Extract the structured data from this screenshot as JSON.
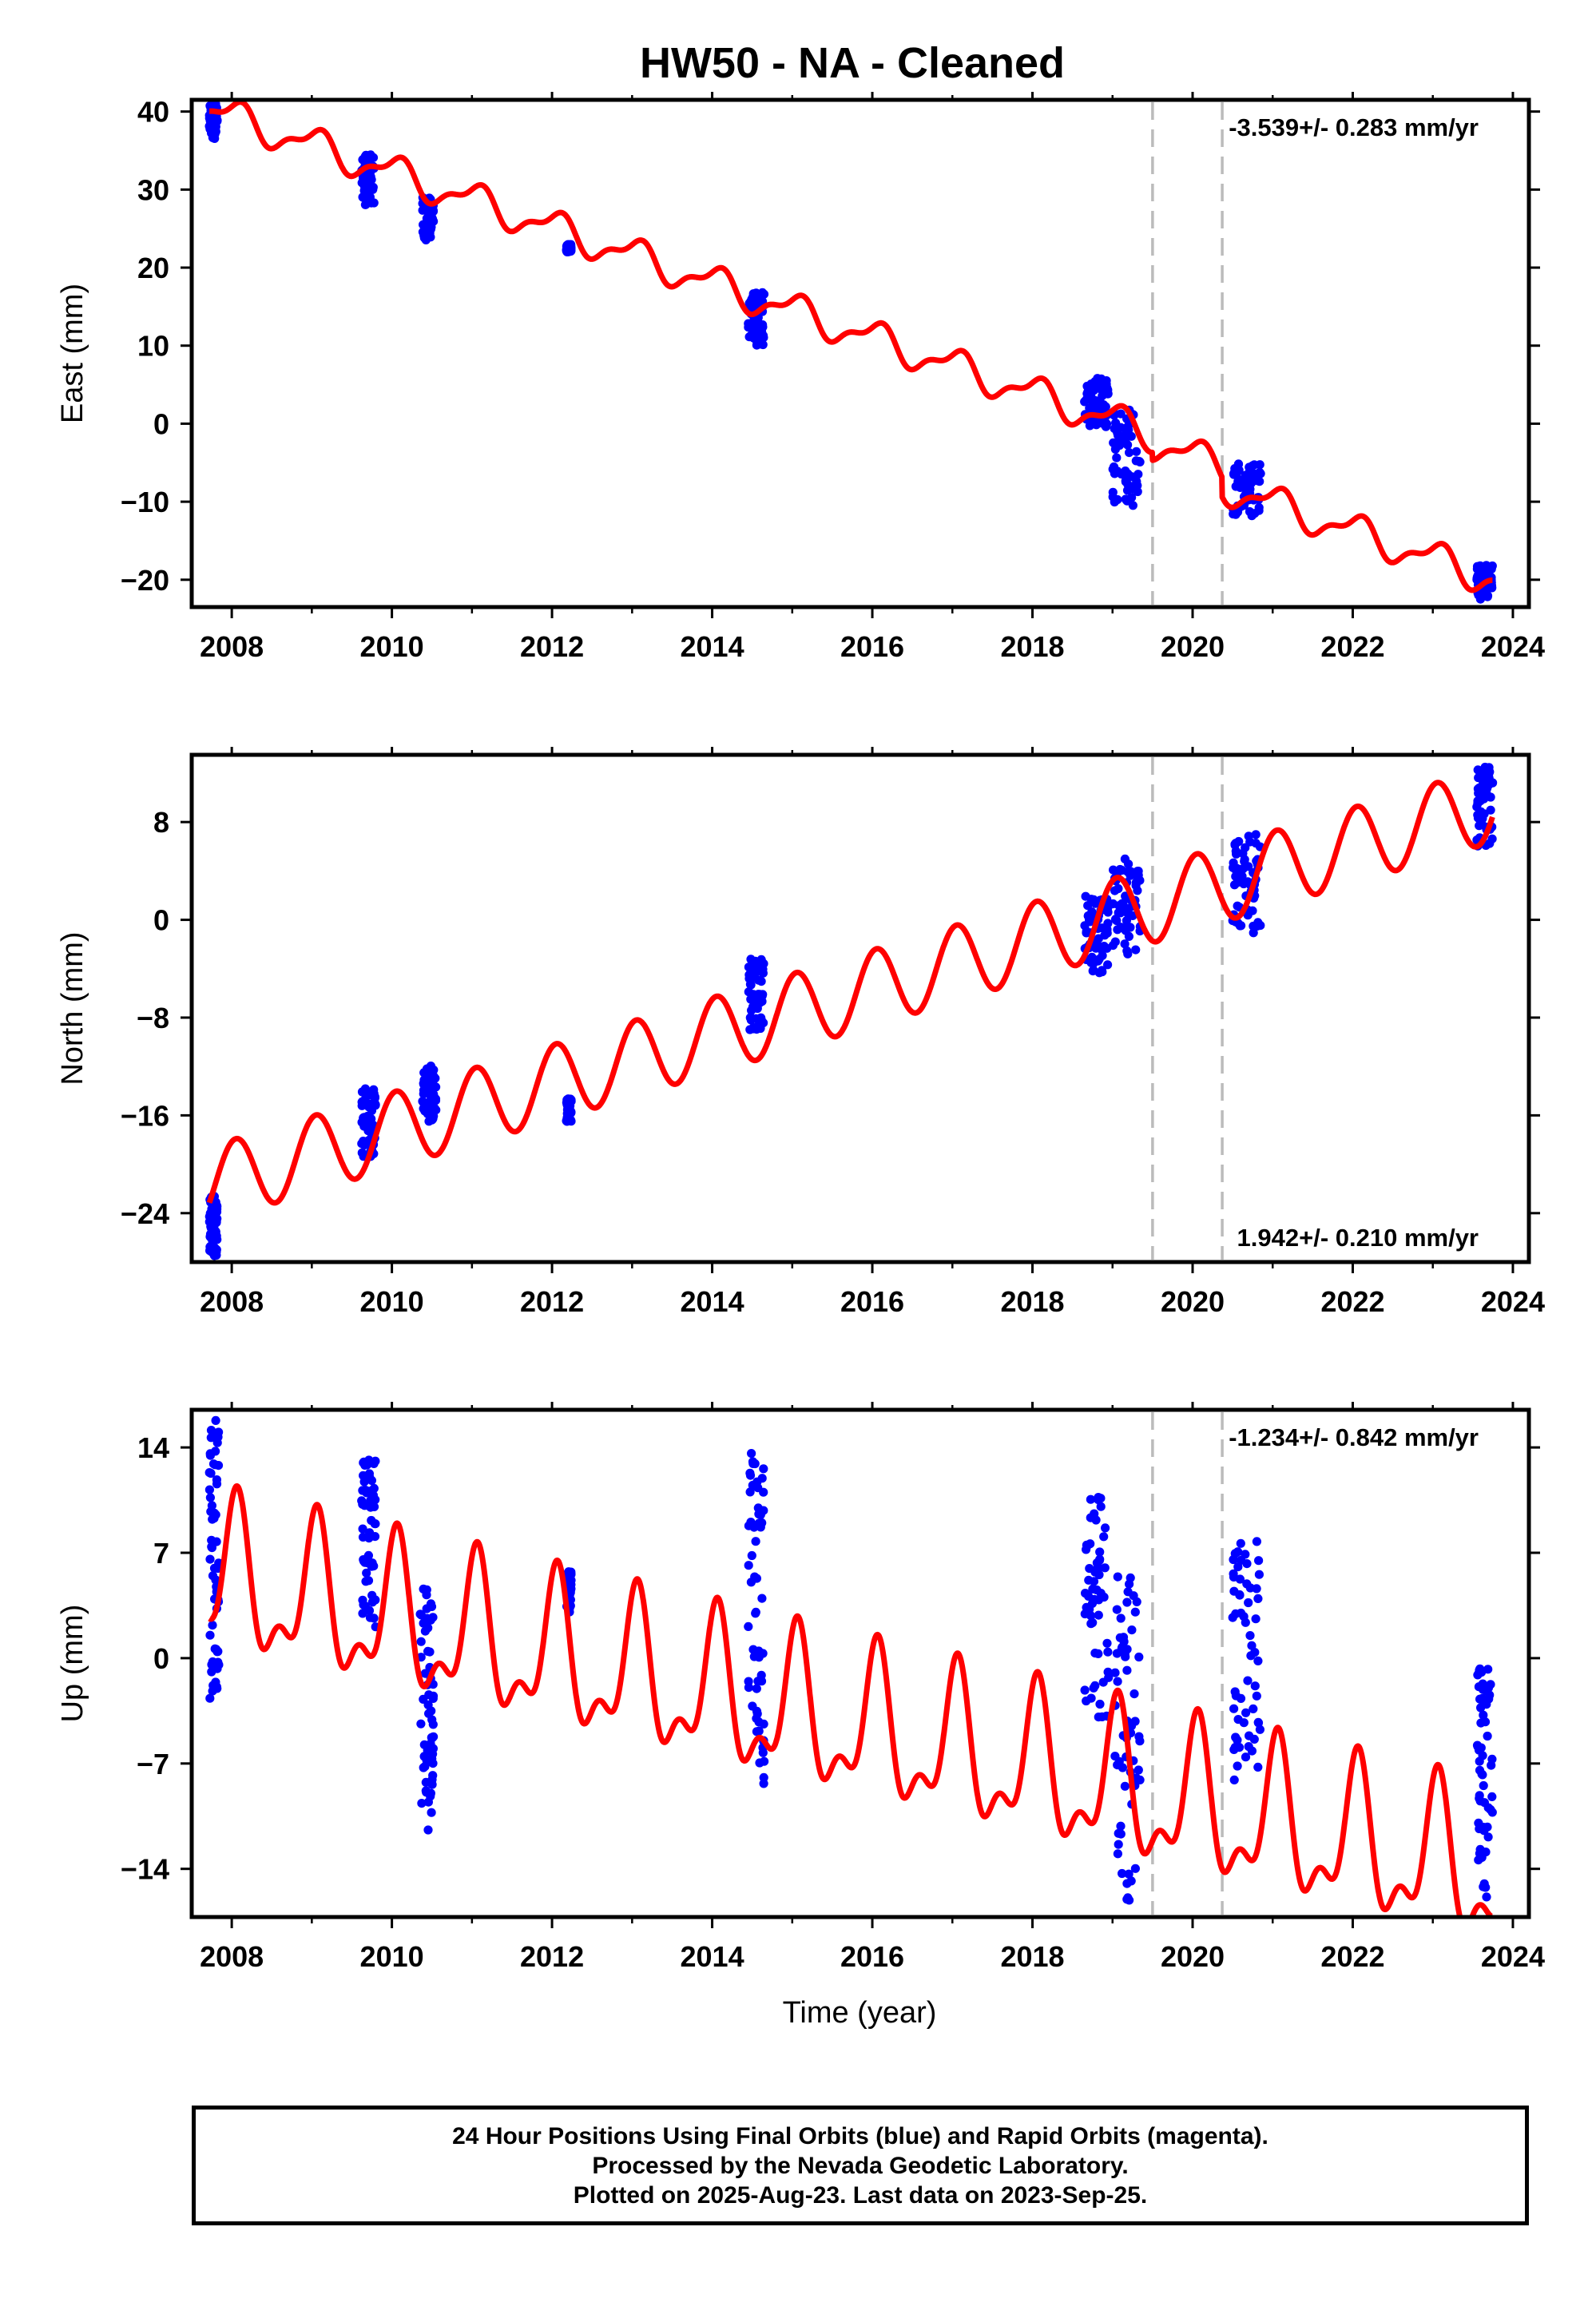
{
  "title": "HW50  - NA - Cleaned",
  "colors": {
    "data": "#0000ff",
    "model": "#ff0000",
    "steps": "#bbbbbb",
    "frame": "#000000"
  },
  "chart_data": [
    {
      "type": "scatter",
      "ylabel": "East (mm)",
      "xlabel": "",
      "xlim": [
        2007.5,
        2024.2
      ],
      "ylim": [
        -23.5,
        41.5
      ],
      "xticks": [
        2008,
        2010,
        2012,
        2014,
        2016,
        2018,
        2020,
        2022,
        2024
      ],
      "yticks": [
        -20,
        -10,
        0,
        10,
        20,
        30,
        40
      ],
      "ytick_labels": [
        "−20",
        "−10",
        "0",
        "10",
        "20",
        "30",
        "40"
      ],
      "rate_label": "-3.539+/- 0.283 mm/yr",
      "rate_position": "top-right",
      "steps": [
        2019.5,
        2020.37
      ],
      "model": {
        "rate": -3.539,
        "ref_epoch": 2007.8,
        "offset": 40.0,
        "annual_amp": 1.9,
        "annual_phase": 0.0,
        "semiannual_amp": 0.8,
        "semiannual_phase": 0.25,
        "step_offsets": [
          -1.0,
          -2.5
        ]
      },
      "clusters": [
        {
          "t": [
            2007.72,
            2007.82
          ],
          "y": [
            36.5,
            41.0
          ]
        },
        {
          "t": [
            2009.62,
            2009.78
          ],
          "y": [
            28.0,
            34.5
          ]
        },
        {
          "t": [
            2010.38,
            2010.52
          ],
          "y": [
            23.5,
            29.0
          ]
        },
        {
          "t": [
            2012.18,
            2012.24
          ],
          "y": [
            22.0,
            23.0
          ]
        },
        {
          "t": [
            2014.45,
            2014.65
          ],
          "y": [
            10.0,
            16.8
          ]
        },
        {
          "t": [
            2018.65,
            2018.95
          ],
          "y": [
            -0.5,
            6.0
          ]
        },
        {
          "t": [
            2019.0,
            2019.35
          ],
          "y": [
            -10.5,
            2.5
          ]
        },
        {
          "t": [
            2020.5,
            2020.85
          ],
          "y": [
            -12.0,
            -5.0
          ]
        },
        {
          "t": [
            2023.55,
            2023.75
          ],
          "y": [
            -22.5,
            -18.0
          ]
        }
      ]
    },
    {
      "type": "scatter",
      "ylabel": "North (mm)",
      "xlabel": "",
      "xlim": [
        2007.5,
        2024.2
      ],
      "ylim": [
        -28.0,
        13.5
      ],
      "xticks": [
        2008,
        2010,
        2012,
        2014,
        2016,
        2018,
        2020,
        2022,
        2024
      ],
      "yticks": [
        -24,
        -16,
        -8,
        0,
        8
      ],
      "ytick_labels": [
        "−24",
        "−16",
        "−8",
        "0",
        "8"
      ],
      "rate_label": "1.942+/- 0.210 mm/yr",
      "rate_position": "bottom-right",
      "steps": [
        2019.5,
        2020.37
      ],
      "model": {
        "rate": 1.942,
        "ref_epoch": 2007.8,
        "offset": -21.5,
        "annual_amp": 3.1,
        "annual_phase": 0.0,
        "semiannual_amp": 0.0,
        "semiannual_phase": 0.0,
        "step_offsets": [
          0.0,
          0.0
        ]
      },
      "clusters": [
        {
          "t": [
            2007.72,
            2007.82
          ],
          "y": [
            -27.5,
            -22.5
          ]
        },
        {
          "t": [
            2009.62,
            2009.8
          ],
          "y": [
            -19.5,
            -13.8
          ]
        },
        {
          "t": [
            2010.38,
            2010.55
          ],
          "y": [
            -16.5,
            -11.8
          ]
        },
        {
          "t": [
            2012.18,
            2012.24
          ],
          "y": [
            -16.5,
            -14.5
          ]
        },
        {
          "t": [
            2014.45,
            2014.65
          ],
          "y": [
            -9.0,
            -3.2
          ]
        },
        {
          "t": [
            2018.65,
            2018.95
          ],
          "y": [
            -4.5,
            2.0
          ]
        },
        {
          "t": [
            2019.0,
            2019.35
          ],
          "y": [
            -3.0,
            5.0
          ]
        },
        {
          "t": [
            2020.5,
            2020.85
          ],
          "y": [
            -1.5,
            7.3
          ]
        },
        {
          "t": [
            2023.55,
            2023.75
          ],
          "y": [
            6.0,
            12.5
          ]
        }
      ]
    },
    {
      "type": "scatter",
      "ylabel": "Up (mm)",
      "xlabel": "Time (year)",
      "xlim": [
        2007.5,
        2024.2
      ],
      "ylim": [
        -17.2,
        16.5
      ],
      "xticks": [
        2008,
        2010,
        2012,
        2014,
        2016,
        2018,
        2020,
        2022,
        2024
      ],
      "yticks": [
        -14,
        -7,
        0,
        7,
        14
      ],
      "ytick_labels": [
        "−14",
        "−7",
        "0",
        "7",
        "14"
      ],
      "rate_label": "-1.234+/- 0.842 mm/yr",
      "rate_position": "top-right",
      "steps": [
        2019.5,
        2020.37
      ],
      "model": {
        "rate": -1.234,
        "ref_epoch": 2007.8,
        "offset": 5.2,
        "annual_amp": 4.4,
        "annual_phase": 0.0,
        "semiannual_amp": 2.2,
        "semiannual_phase": 0.15,
        "step_offsets": [
          0.0,
          0.0
        ]
      },
      "clusters": [
        {
          "t": [
            2007.72,
            2007.84
          ],
          "y": [
            -3.0,
            15.8
          ]
        },
        {
          "t": [
            2009.62,
            2009.8
          ],
          "y": [
            2.0,
            13.2
          ]
        },
        {
          "t": [
            2010.35,
            2010.52
          ],
          "y": [
            -11.5,
            5.0
          ]
        },
        {
          "t": [
            2012.18,
            2012.24
          ],
          "y": [
            3.0,
            5.8
          ]
        },
        {
          "t": [
            2014.45,
            2014.65
          ],
          "y": [
            -8.5,
            13.8
          ]
        },
        {
          "t": [
            2018.65,
            2018.95
          ],
          "y": [
            -4.0,
            11.0
          ]
        },
        {
          "t": [
            2019.0,
            2019.35
          ],
          "y": [
            -16.5,
            5.5
          ]
        },
        {
          "t": [
            2020.5,
            2020.85
          ],
          "y": [
            -8.5,
            7.8
          ]
        },
        {
          "t": [
            2023.55,
            2023.75
          ],
          "y": [
            -16.0,
            -0.2
          ]
        }
      ]
    }
  ],
  "footer": {
    "line1": "24 Hour Positions Using Final Orbits (blue) and Rapid Orbits (magenta).",
    "line2": "Processed by the Nevada Geodetic Laboratory.",
    "line3": "Plotted on 2025-Aug-23. Last data on 2023-Sep-25."
  }
}
